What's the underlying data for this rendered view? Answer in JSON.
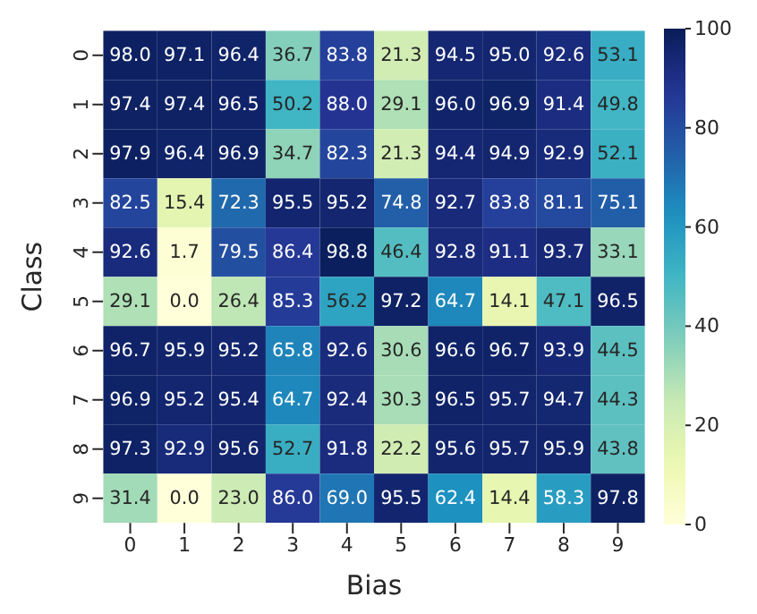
{
  "chart_data": {
    "type": "heatmap",
    "xlabel": "Bias",
    "ylabel": "Class",
    "categories": [
      "0",
      "1",
      "2",
      "3",
      "4",
      "5",
      "6",
      "7",
      "8",
      "9"
    ],
    "y_categories": [
      "0",
      "1",
      "2",
      "3",
      "4",
      "5",
      "6",
      "7",
      "8",
      "9"
    ],
    "cells": [
      [
        98.0,
        97.1,
        96.4,
        36.7,
        83.8,
        21.3,
        94.5,
        95.0,
        92.6,
        53.1
      ],
      [
        97.4,
        97.4,
        96.5,
        50.2,
        88.0,
        29.1,
        96.0,
        96.9,
        91.4,
        49.8
      ],
      [
        97.9,
        96.4,
        96.9,
        34.7,
        82.3,
        21.3,
        94.4,
        94.9,
        92.9,
        52.1
      ],
      [
        82.5,
        15.4,
        72.3,
        95.5,
        95.2,
        74.8,
        92.7,
        83.8,
        81.1,
        75.1
      ],
      [
        92.6,
        1.7,
        79.5,
        86.4,
        98.8,
        46.4,
        92.8,
        91.1,
        93.7,
        33.1
      ],
      [
        29.1,
        0.0,
        26.4,
        85.3,
        56.2,
        97.2,
        64.7,
        14.1,
        47.1,
        96.5
      ],
      [
        96.7,
        95.9,
        95.2,
        65.8,
        92.6,
        30.6,
        96.6,
        96.7,
        93.9,
        44.5
      ],
      [
        96.9,
        95.2,
        95.4,
        64.7,
        92.4,
        30.3,
        96.5,
        95.7,
        94.7,
        44.3
      ],
      [
        97.3,
        92.9,
        95.6,
        52.7,
        91.8,
        22.2,
        95.6,
        95.7,
        95.9,
        43.8
      ],
      [
        31.4,
        0.0,
        23.0,
        86.0,
        69.0,
        95.5,
        62.4,
        14.4,
        58.3,
        97.8
      ]
    ],
    "cell_labels": [
      [
        "98.0",
        "97.1",
        "96.4",
        "36.7",
        "83.8",
        "21.3",
        "94.5",
        "95.0",
        "92.6",
        "53.1"
      ],
      [
        "97.4",
        "97.4",
        "96.5",
        "50.2",
        "88.0",
        "29.1",
        "96.0",
        "96.9",
        "91.4",
        "49.8"
      ],
      [
        "97.9",
        "96.4",
        "96.9",
        "34.7",
        "82.3",
        "21.3",
        "94.4",
        "94.9",
        "92.9",
        "52.1"
      ],
      [
        "82.5",
        "15.4",
        "72.3",
        "95.5",
        "95.2",
        "74.8",
        "92.7",
        "83.8",
        "81.1",
        "75.1"
      ],
      [
        "92.6",
        "1.7",
        "79.5",
        "86.4",
        "98.8",
        "46.4",
        "92.8",
        "91.1",
        "93.7",
        "33.1"
      ],
      [
        "29.1",
        "0.0",
        "26.4",
        "85.3",
        "56.2",
        "97.2",
        "64.7",
        "14.1",
        "47.1",
        "96.5"
      ],
      [
        "96.7",
        "95.9",
        "95.2",
        "65.8",
        "92.6",
        "30.6",
        "96.6",
        "96.7",
        "93.9",
        "44.5"
      ],
      [
        "96.9",
        "95.2",
        "95.4",
        "64.7",
        "92.4",
        "30.3",
        "96.5",
        "95.7",
        "94.7",
        "44.3"
      ],
      [
        "97.3",
        "92.9",
        "95.6",
        "52.7",
        "91.8",
        "22.2",
        "95.6",
        "95.7",
        "95.9",
        "43.8"
      ],
      [
        "31.4",
        "0.0",
        "23.0",
        "86.0",
        "69.0",
        "95.5",
        "62.4",
        "14.4",
        "58.3",
        "97.8"
      ]
    ],
    "clim": [
      0,
      100
    ],
    "cticks": [
      0,
      20,
      40,
      60,
      80,
      100
    ]
  }
}
